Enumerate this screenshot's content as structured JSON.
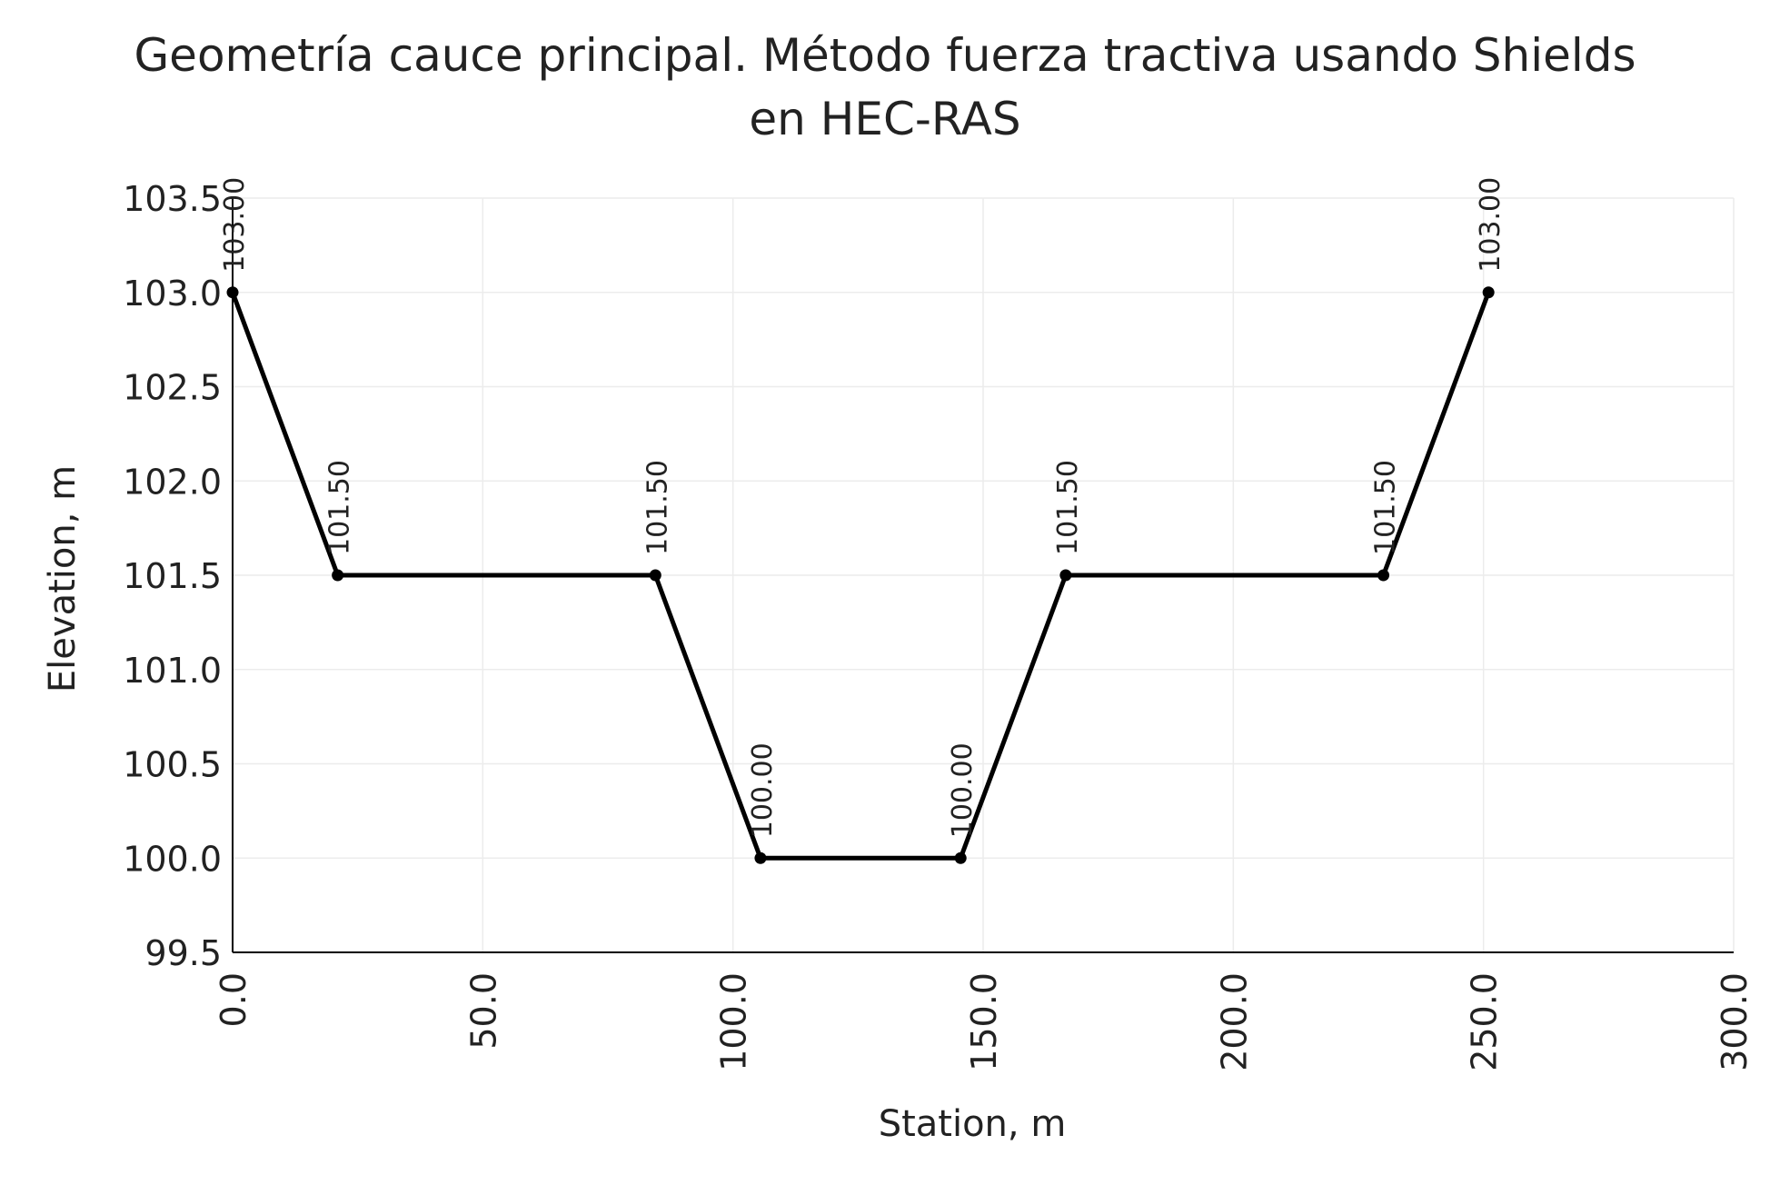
{
  "chart_data": {
    "type": "line",
    "title_line1": "Geometría cauce principal. Método fuerza tractiva usando Shields",
    "title_line2": "en HEC-RAS",
    "xlabel": "Station, m",
    "ylabel": "Elevation, m",
    "xlim": [
      0,
      300
    ],
    "ylim": [
      99.5,
      103.5
    ],
    "x_ticks": [
      0,
      50,
      100,
      150,
      200,
      250,
      300
    ],
    "x_tick_labels": [
      "0.0",
      "50.0",
      "100.0",
      "150.0",
      "200.0",
      "250.0",
      "300.0"
    ],
    "y_ticks": [
      99.5,
      100.0,
      100.5,
      101.0,
      101.5,
      102.0,
      102.5,
      103.0,
      103.5
    ],
    "y_tick_labels": [
      "99.5",
      "100.0",
      "100.5",
      "101.0",
      "101.5",
      "102.0",
      "102.5",
      "103.0",
      "103.5"
    ],
    "grid": true,
    "line_color": "#000000",
    "grid_color": "#ececec",
    "series": [
      {
        "x": [
          0,
          21,
          84.5,
          105.5,
          145.5,
          166.5,
          230,
          251
        ],
        "y": [
          103.0,
          101.5,
          101.5,
          100.0,
          100.0,
          101.5,
          101.5,
          103.0
        ],
        "labels": [
          "103.00",
          "101.50",
          "101.50",
          "100.00",
          "100.00",
          "101.50",
          "101.50",
          "103.00"
        ]
      }
    ]
  }
}
